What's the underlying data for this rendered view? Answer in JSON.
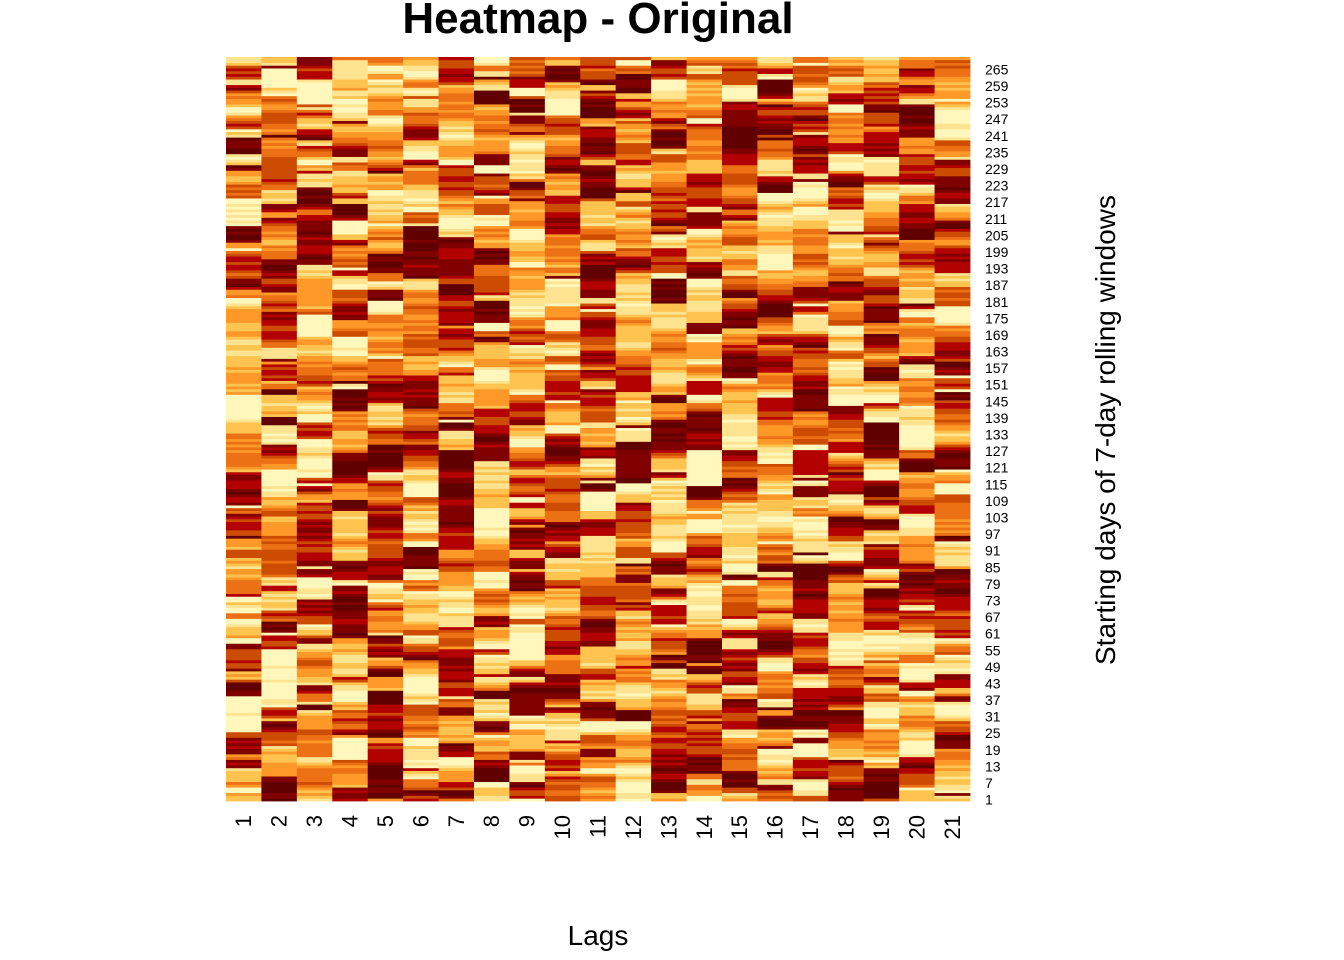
{
  "chart_data": {
    "type": "heatmap",
    "title": "Heatmap - Original",
    "xlabel": "Lags",
    "ylabel": "Starting days of 7-day rolling windows",
    "x_categories": [
      "1",
      "2",
      "3",
      "4",
      "5",
      "6",
      "7",
      "8",
      "9",
      "10",
      "11",
      "12",
      "13",
      "14",
      "15",
      "16",
      "17",
      "18",
      "19",
      "20",
      "21"
    ],
    "y_tick_labels": [
      "1",
      "7",
      "13",
      "19",
      "25",
      "31",
      "37",
      "43",
      "49",
      "55",
      "61",
      "67",
      "73",
      "79",
      "85",
      "91",
      "97",
      "103",
      "109",
      "115",
      "121",
      "127",
      "133",
      "139",
      "145",
      "151",
      "157",
      "163",
      "169",
      "175",
      "181",
      "187",
      "193",
      "199",
      "205",
      "211",
      "217",
      "223",
      "229",
      "235",
      "241",
      "247",
      "253",
      "259",
      "265"
    ],
    "y_range": [
      1,
      269
    ],
    "n_rows": 269,
    "color_scale": [
      "#fff7bc",
      "#fee391",
      "#fec44f",
      "#fe9929",
      "#ec7014",
      "#cc4c02",
      "#b30000",
      "#800000",
      "#600000"
    ],
    "legend": "none",
    "grid": false
  }
}
